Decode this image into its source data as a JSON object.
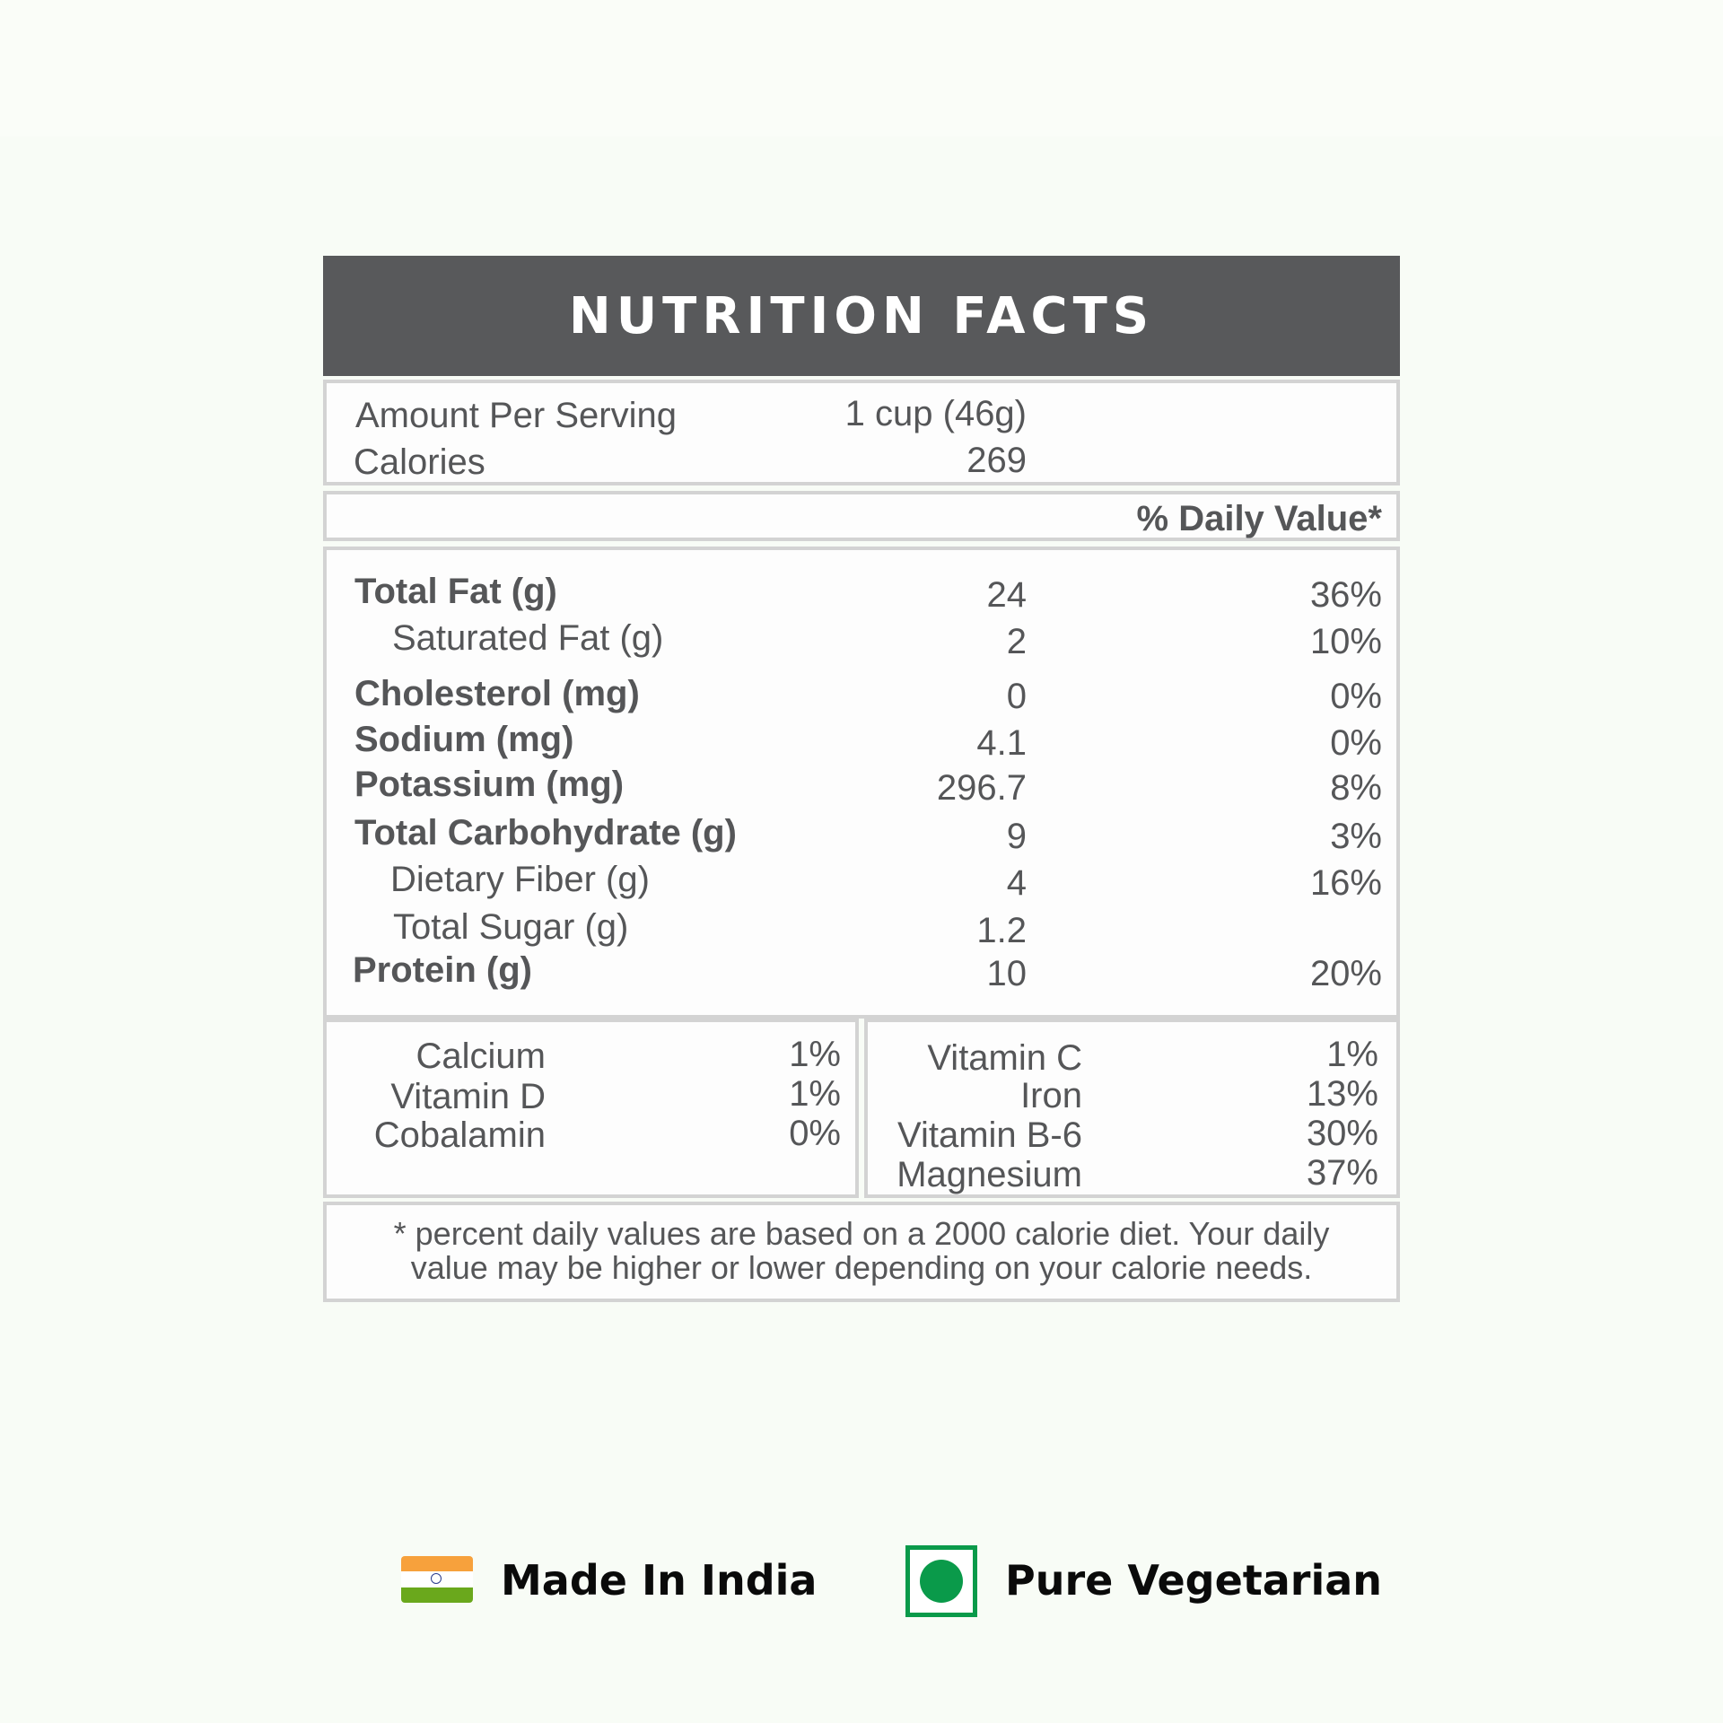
{
  "title": "NUTRITION FACTS",
  "serving": {
    "amount_label": "Amount Per Serving",
    "amount_value": "1 cup (46g)",
    "calories_label": "Calories",
    "calories_value": "269"
  },
  "daily_value_header": "% Daily Value*",
  "nutrients": [
    {
      "label": "Total Fat (g)",
      "amount": "24",
      "dv": "36%"
    },
    {
      "label": "Saturated Fat (g)",
      "amount": "2",
      "dv": "10%"
    },
    {
      "label": "Cholesterol (mg)",
      "amount": "0",
      "dv": "0%"
    },
    {
      "label": "Sodium (mg)",
      "amount": "4.1",
      "dv": "0%"
    },
    {
      "label": "Potassium (mg)",
      "amount": "296.7",
      "dv": "8%"
    },
    {
      "label": "Total Carbohydrate (g)",
      "amount": "9",
      "dv": "3%"
    },
    {
      "label": "Dietary Fiber (g)",
      "amount": "4",
      "dv": "16%"
    },
    {
      "label": "Total Sugar (g)",
      "amount": "1.2",
      "dv": ""
    },
    {
      "label": "Protein (g)",
      "amount": "10",
      "dv": "20%"
    }
  ],
  "vitamins_left": [
    {
      "label": "Calcium",
      "dv": "1%"
    },
    {
      "label": "Vitamin D",
      "dv": "1%"
    },
    {
      "label": "Cobalamin",
      "dv": "0%"
    }
  ],
  "vitamins_right": [
    {
      "label": "Vitamin C",
      "dv": "1%"
    },
    {
      "label": "Iron",
      "dv": "13%"
    },
    {
      "label": "Vitamin B-6",
      "dv": "30%"
    },
    {
      "label": "Magnesium",
      "dv": "37%"
    }
  ],
  "footnote": {
    "line1": "* percent daily values are based on a  2000 calorie diet. Your daily",
    "line2": "value may be higher or lower depending on your calorie needs."
  },
  "badges": {
    "made_in": "Made In India",
    "veg": "Pure Vegetarian"
  },
  "colors": {
    "header_bg": "#58595b",
    "text": "#555658",
    "veg_green": "#0a9a4a",
    "flag_saffron": "#f7a13c",
    "flag_green": "#6aa81c"
  }
}
